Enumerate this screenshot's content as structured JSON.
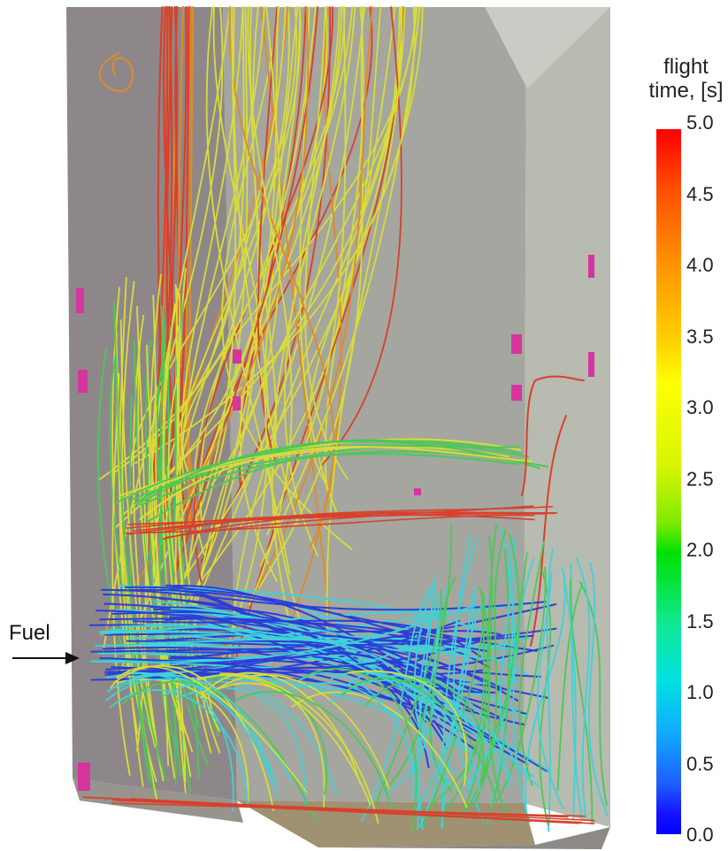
{
  "label": {
    "fuel": "Fuel"
  },
  "legend": {
    "title_line1": "flight",
    "title_line2": "time, [s]",
    "ticks": [
      "5.0",
      "4.5",
      "4.0",
      "3.5",
      "3.0",
      "2.5",
      "2.0",
      "1.5",
      "1.0",
      "0.5",
      "0.0"
    ],
    "gradient": [
      "#ff0000",
      "#ff8c00",
      "#ffff00",
      "#00e000",
      "#00e2e0",
      "#1e5cff",
      "#0000ff"
    ]
  },
  "colors": {
    "wall_dark": "#8e8789",
    "wall_mid": "#a3a59e",
    "wall_light": "#b8bcb0",
    "floor_tan": "#9f9171",
    "port_magenta": "#d6359e",
    "red": "#d8402c",
    "orange": "#e08a2a",
    "yellow": "#d8dc3a",
    "green": "#4cc858",
    "cyan": "#3fd2d8",
    "blue": "#2c3ed8"
  }
}
